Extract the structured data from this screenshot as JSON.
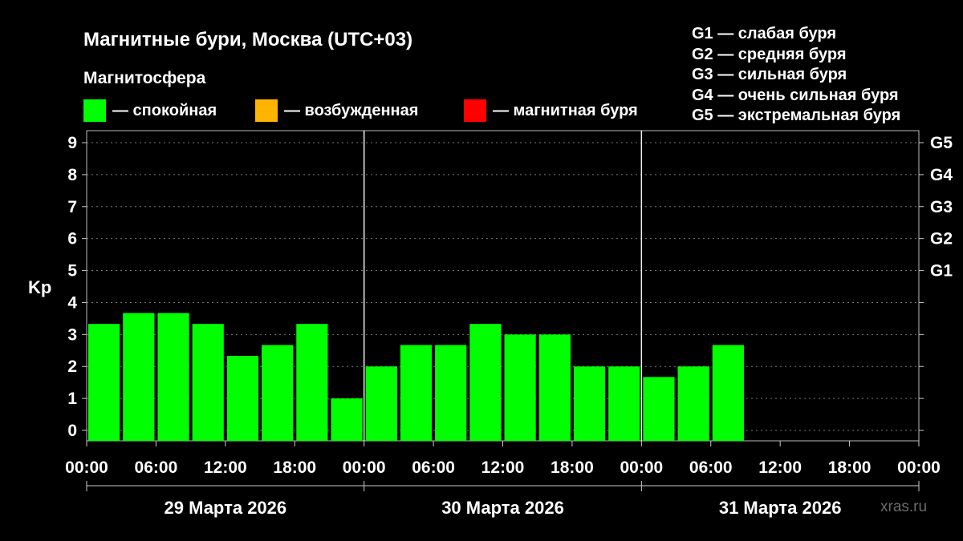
{
  "header": {
    "title": "Магнитные бури, Москва (UTC+03)",
    "legend_title": "Магнитосфера"
  },
  "legend": [
    {
      "label": "— спокойная",
      "color": "#00ff00"
    },
    {
      "label": "— возбужденная",
      "color": "#ffb400"
    },
    {
      "label": "— магнитная буря",
      "color": "#ff0000"
    }
  ],
  "storm_levels": [
    "G1 — слабая буря",
    "G2 — средняя буря",
    "G3 — сильная буря",
    "G4 — очень сильная буря",
    "G5 — экстремальная буря"
  ],
  "watermark": "xras.ru",
  "chart_data": {
    "type": "bar",
    "ylabel": "Kp",
    "ylim": [
      0,
      9.6
    ],
    "yticks": [
      "0",
      "1",
      "2",
      "3",
      "4",
      "5",
      "6",
      "7",
      "8",
      "9"
    ],
    "right_ticks": [
      {
        "value": 5,
        "label": "G1"
      },
      {
        "value": 6,
        "label": "G2"
      },
      {
        "value": 7,
        "label": "G3"
      },
      {
        "value": 8,
        "label": "G4"
      },
      {
        "value": 9,
        "label": "G5"
      }
    ],
    "xticks": [
      "00:00",
      "06:00",
      "12:00",
      "18:00",
      "00:00",
      "06:00",
      "12:00",
      "18:00",
      "00:00",
      "06:00",
      "12:00",
      "18:00",
      "00:00"
    ],
    "days": [
      "29 Марта 2026",
      "30 Марта 2026",
      "31 Марта 2026"
    ],
    "interval_hours": 3,
    "grid": "horizontal dashed",
    "bar_color": "#00ff00",
    "values": [
      3.33,
      3.67,
      3.67,
      3.33,
      2.33,
      2.67,
      3.33,
      1.0,
      2.0,
      2.67,
      2.67,
      3.33,
      3.0,
      3.0,
      2.0,
      2.0,
      1.67,
      2.0,
      2.67
    ]
  }
}
